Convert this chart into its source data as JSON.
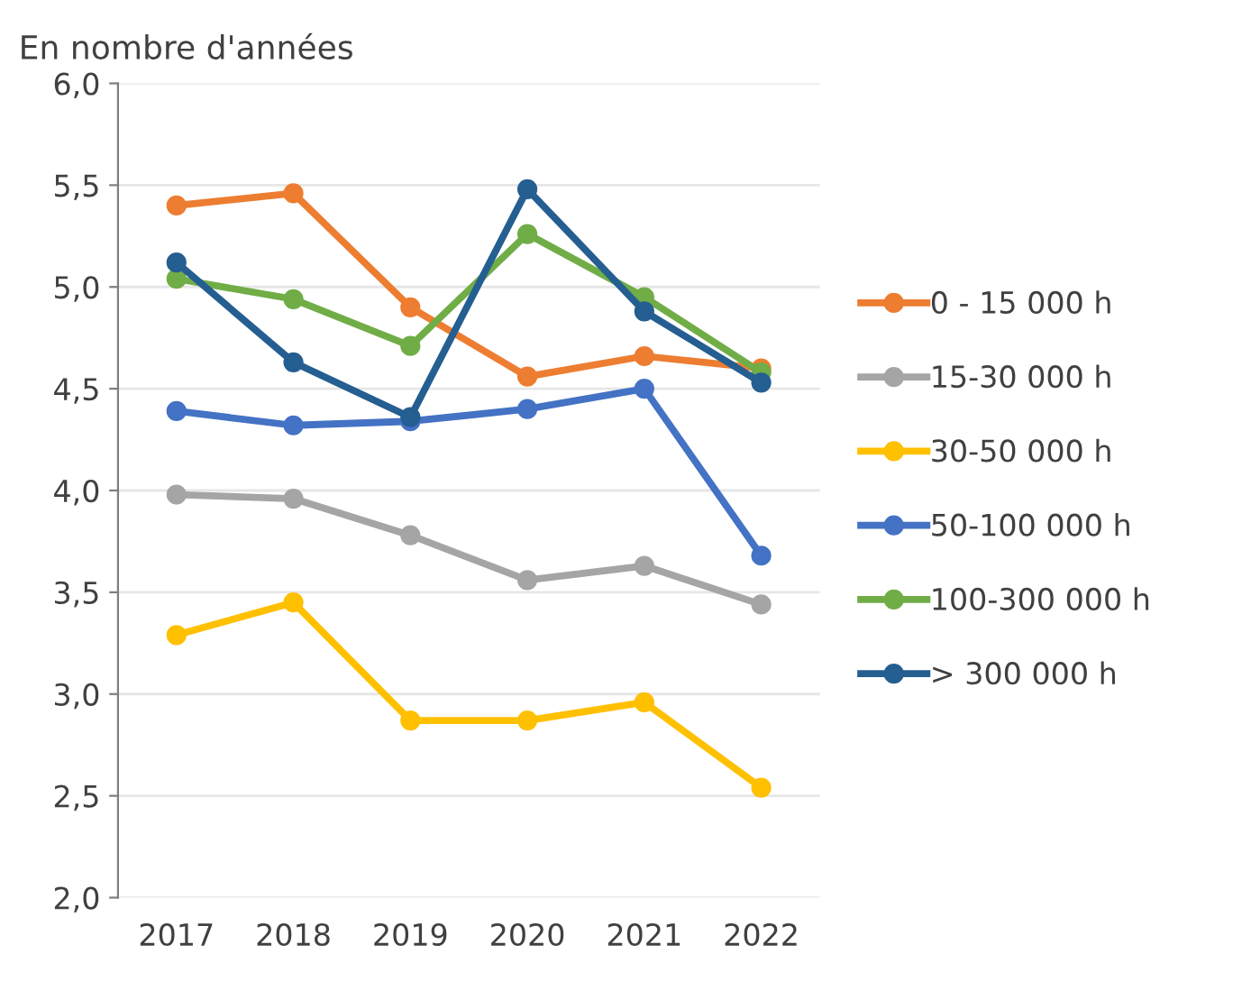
{
  "chart_data": {
    "type": "line",
    "title": "En nombre d'années",
    "categories": [
      "2017",
      "2018",
      "2019",
      "2020",
      "2021",
      "2022"
    ],
    "series": [
      {
        "name": "0 - 15 000 h",
        "color": "#ed7d31",
        "values": [
          5.4,
          5.46,
          4.9,
          4.56,
          4.66,
          4.6
        ]
      },
      {
        "name": "15-30 000 h",
        "color": "#a5a5a5",
        "values": [
          3.98,
          3.96,
          3.78,
          3.56,
          3.63,
          3.44
        ]
      },
      {
        "name": "30-50 000 h",
        "color": "#ffc000",
        "values": [
          3.29,
          3.45,
          2.87,
          2.87,
          2.96,
          2.54
        ]
      },
      {
        "name": "50-100 000 h",
        "color": "#4472c4",
        "values": [
          4.39,
          4.32,
          4.34,
          4.4,
          4.5,
          3.68
        ]
      },
      {
        "name": "100-300 000 h",
        "color": "#70ad47",
        "values": [
          5.04,
          4.94,
          4.71,
          5.26,
          4.95,
          4.58
        ]
      },
      {
        "name": "> 300 000 h",
        "color": "#255e91",
        "values": [
          5.12,
          4.63,
          4.36,
          5.48,
          4.88,
          4.53
        ]
      }
    ],
    "ylim": [
      2.0,
      6.0
    ],
    "yticks": [
      {
        "value": 2.0,
        "label": "2,0"
      },
      {
        "value": 2.5,
        "label": "2,5"
      },
      {
        "value": 3.0,
        "label": "3,0"
      },
      {
        "value": 3.5,
        "label": "3,5"
      },
      {
        "value": 4.0,
        "label": "4,0"
      },
      {
        "value": 4.5,
        "label": "4,5"
      },
      {
        "value": 5.0,
        "label": "5,0"
      },
      {
        "value": 5.5,
        "label": "5,5"
      },
      {
        "value": 6.0,
        "label": "6,0"
      }
    ],
    "grid": "y",
    "legend": "right",
    "marker": "circle",
    "line_style": "solid"
  }
}
